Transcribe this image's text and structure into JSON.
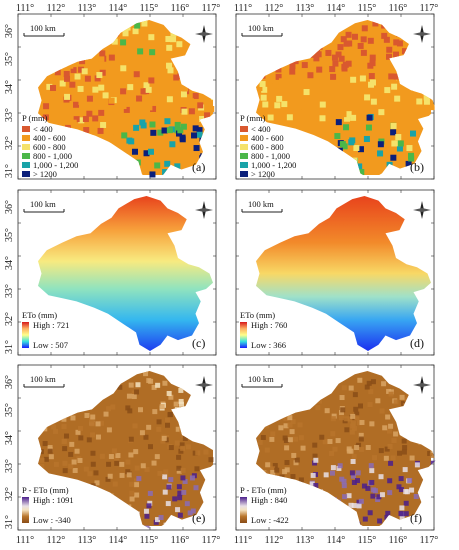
{
  "x_ticks": [
    "111°",
    "112°",
    "113°",
    "114°",
    "115°",
    "116°",
    "117°"
  ],
  "y_ticks": [
    "36°",
    "35°",
    "34°",
    "33°",
    "32°",
    "31°"
  ],
  "scale_bar_label": "100 km",
  "panels": [
    {
      "letter": "(a)",
      "legend_type": "classes",
      "legend_title": "P (mm)",
      "classes": [
        {
          "label": "< 400",
          "color": "#d9582f"
        },
        {
          "label": "400 - 600",
          "color": "#f29a1e"
        },
        {
          "label": "600 - 800",
          "color": "#f5e26a"
        },
        {
          "label": "800 - 1,000",
          "color": "#4bb749"
        },
        {
          "label": "1,000 - 1,200",
          "color": "#19a3a8"
        },
        {
          "label": "> 1200",
          "color": "#0b1f7a"
        }
      ],
      "map_base": "#f29a1e"
    },
    {
      "letter": "(b)",
      "legend_type": "classes",
      "legend_title": "P (mm)",
      "classes": [
        {
          "label": "< 400",
          "color": "#d9582f"
        },
        {
          "label": "400 - 600",
          "color": "#f29a1e"
        },
        {
          "label": "600 - 800",
          "color": "#f5e26a"
        },
        {
          "label": "800 - 1,000",
          "color": "#4bb749"
        },
        {
          "label": "1,000 - 1,200",
          "color": "#19a3a8"
        },
        {
          "label": "> 1200",
          "color": "#0b1f7a"
        }
      ],
      "map_base": "#f29a1e"
    },
    {
      "letter": "(c)",
      "legend_type": "ramp",
      "legend_title": "ETo (mm)",
      "high": "High : 721",
      "low": "Low : 507",
      "ramp": [
        "#d7191c",
        "#fdae61",
        "#ffff8c",
        "#38e0e0",
        "#1a1aff"
      ]
    },
    {
      "letter": "(d)",
      "legend_type": "ramp",
      "legend_title": "ETo (mm)",
      "high": "High : 760",
      "low": "Low : 366",
      "ramp": [
        "#d7191c",
        "#fdae61",
        "#ffff8c",
        "#38e0e0",
        "#1a1aff"
      ]
    },
    {
      "letter": "(e)",
      "legend_type": "ramp",
      "legend_title": "P - ETo (mm)",
      "high": "High : 1091",
      "low": "Low : -340",
      "ramp": [
        "#4b1f8c",
        "#e9e0e6",
        "#f5e3c0",
        "#b8742b",
        "#8a4d18"
      ]
    },
    {
      "letter": "(f)",
      "legend_type": "ramp",
      "legend_title": "P - ETo (mm)",
      "high": "High : 840",
      "low": "Low : -422",
      "ramp": [
        "#4b1f8c",
        "#e9e0e6",
        "#f5e3c0",
        "#b8742b",
        "#8a4d18"
      ]
    }
  ],
  "north_arrow_icon": "compass-rose-icon"
}
